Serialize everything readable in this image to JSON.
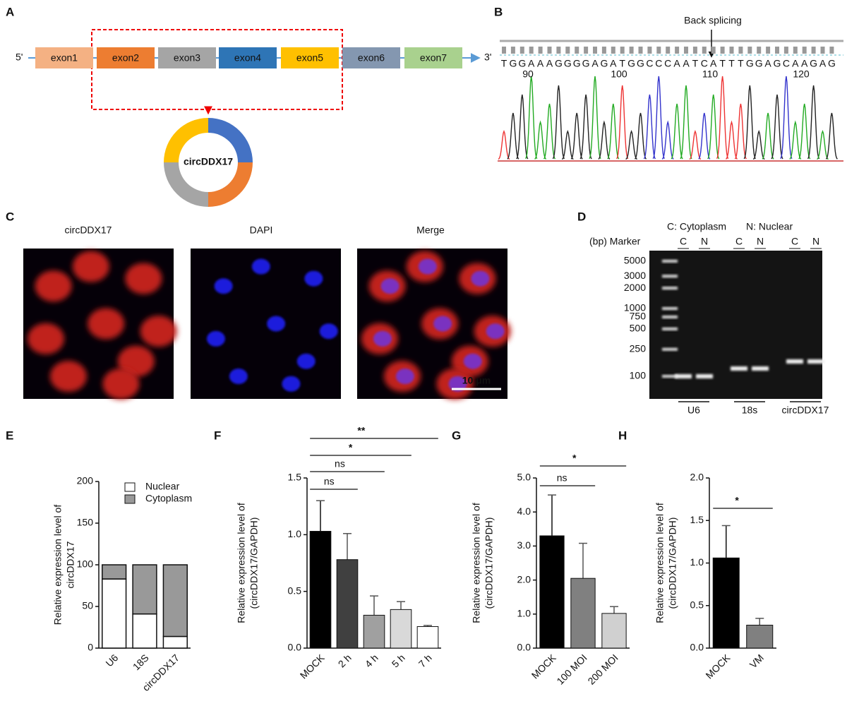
{
  "panel_labels": [
    "A",
    "B",
    "C",
    "D",
    "E",
    "F",
    "G",
    "H"
  ],
  "panel_a": {
    "five_prime": "5'",
    "three_prime": "3'",
    "exons": [
      "exon1",
      "exon2",
      "exon3",
      "exon4",
      "exon5",
      "exon6",
      "exon7"
    ],
    "circle_label": "circDDX17"
  },
  "panel_b": {
    "annotation": "Back splicing",
    "bases": [
      "T",
      "G",
      "G",
      "A",
      "A",
      "A",
      "G",
      "G",
      "G",
      "G",
      "A",
      "G",
      "A",
      "T",
      "G",
      "G",
      "C",
      "C",
      "C",
      "A",
      "A",
      "T",
      "C",
      "A",
      "T",
      "T",
      "T",
      "G",
      "G",
      "A",
      "G",
      "C",
      "A",
      "A",
      "G",
      "A",
      "G"
    ],
    "position_ticks": [
      90,
      100,
      110,
      120
    ]
  },
  "panel_c": {
    "titles": [
      "circDDX17",
      "DAPI",
      "Merge"
    ],
    "scale_bar": "10 μm"
  },
  "panel_d": {
    "legend": [
      "C: Cytoplasm",
      "N: Nuclear"
    ],
    "header": "(bp) Marker",
    "lanes": [
      "C",
      "N",
      "C",
      "N",
      "C",
      "N"
    ],
    "marker_sizes": [
      5000,
      3000,
      2000,
      1000,
      750,
      500,
      250,
      100
    ],
    "groups": [
      "U6",
      "18s",
      "circDDX17"
    ]
  },
  "chart_data": [
    {
      "type": "stacked_bar",
      "categories": [
        "U6",
        "18S",
        "circDDX17"
      ],
      "series": [
        {
          "name": "Nuclear",
          "color": "#ffffff",
          "values": [
            83,
            41,
            14
          ]
        },
        {
          "name": "Cytoplasm",
          "color": "#999999",
          "values": [
            17,
            59,
            86
          ]
        }
      ],
      "ylabel": [
        "Relative expression level of",
        "circDDX17"
      ],
      "ylim": [
        0,
        200
      ],
      "yticks": [
        0,
        50,
        100,
        150,
        200
      ]
    },
    {
      "type": "bar",
      "categories": [
        "MOCK",
        "2 h",
        "4 h",
        "5 h",
        "7 h"
      ],
      "values": [
        1.03,
        0.78,
        0.29,
        0.34,
        0.19
      ],
      "errors": [
        0.27,
        0.23,
        0.17,
        0.07,
        0.01
      ],
      "colors": [
        "#000000",
        "#404040",
        "#a0a0a0",
        "#d9d9d9",
        "#ffffff"
      ],
      "ylabel": [
        "Relative expression level of",
        "(circDDX17/GAPDH)"
      ],
      "ylim": [
        0,
        1.5
      ],
      "yticks": [
        {
          "value": 0,
          "label": "0.0"
        },
        0.5,
        {
          "value": 1,
          "label": "1.0"
        },
        1.5
      ],
      "significance": [
        {
          "pair": [
            0,
            1
          ],
          "label": "ns"
        },
        {
          "pair": [
            0,
            2
          ],
          "label": "ns"
        },
        {
          "pair": [
            0,
            3
          ],
          "label": "*"
        },
        {
          "pair": [
            0,
            4
          ],
          "label": "**"
        }
      ]
    },
    {
      "type": "bar",
      "categories": [
        "MOCK",
        "100 MOI",
        "200 MOI"
      ],
      "values": [
        3.3,
        2.05,
        1.02
      ],
      "errors": [
        1.2,
        1.03,
        0.2
      ],
      "colors": [
        "#000000",
        "#808080",
        "#d0d0d0"
      ],
      "ylabel": [
        "Relative expression level of",
        "(circDDX17/GAPDH)"
      ],
      "ylim": [
        0,
        5
      ],
      "yticks": [
        {
          "value": 0,
          "label": "0.0"
        },
        {
          "value": 1,
          "label": "1.0"
        },
        {
          "value": 2,
          "label": "2.0"
        },
        {
          "value": 3,
          "label": "3.0"
        },
        {
          "value": 4,
          "label": "4.0"
        },
        {
          "value": 5,
          "label": "5.0"
        }
      ],
      "significance": [
        {
          "pair": [
            0,
            1
          ],
          "label": "ns"
        },
        {
          "pair": [
            0,
            2
          ],
          "label": "*"
        }
      ]
    },
    {
      "type": "bar",
      "categories": [
        "MOCK",
        "VM"
      ],
      "values": [
        1.06,
        0.27
      ],
      "errors": [
        0.38,
        0.08
      ],
      "colors": [
        "#000000",
        "#808080"
      ],
      "ylabel": [
        "Relative expression level of",
        "(circDDX17/GAPDH)"
      ],
      "ylim": [
        0,
        2
      ],
      "yticks": [
        {
          "value": 0,
          "label": "0.0"
        },
        0.5,
        {
          "value": 1,
          "label": "1.0"
        },
        1.5,
        {
          "value": 2,
          "label": "2.0"
        }
      ],
      "significance": [
        {
          "pair": [
            0,
            1
          ],
          "label": "*"
        }
      ]
    }
  ]
}
